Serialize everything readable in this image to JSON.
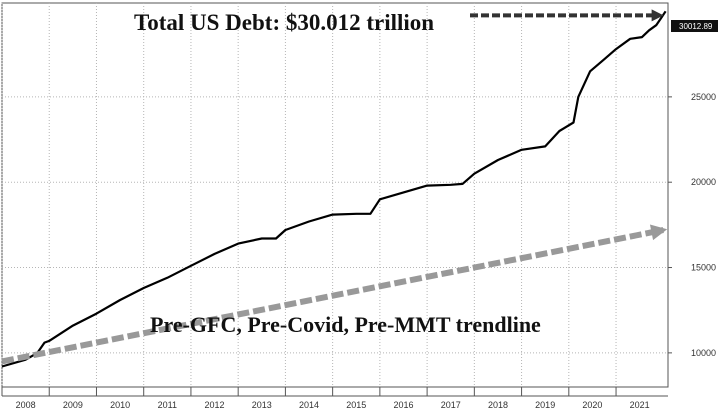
{
  "chart_data": {
    "type": "line",
    "title": "Total US Debt: $30.012 trillion",
    "trend_label": "Pre-GFC, Pre-Covid, Pre-MMT trendline",
    "last_value_label": "30012.89",
    "x_tick_labels": [
      "2008",
      "2009",
      "2010",
      "2011",
      "2012",
      "2013",
      "2014",
      "2015",
      "2016",
      "2017",
      "2018",
      "2019",
      "2020",
      "2021"
    ],
    "y_tick_labels": [
      "10000",
      "15000",
      "20000",
      "25000"
    ],
    "y_ticks": [
      10000,
      15000,
      20000,
      25000
    ],
    "xlim": [
      2008.0,
      2022.1
    ],
    "ylim": [
      8000,
      30500
    ],
    "grid": true,
    "series": [
      {
        "style": "solid",
        "color": "#000000",
        "points": [
          [
            2008.0,
            9200
          ],
          [
            2008.5,
            9600
          ],
          [
            2008.75,
            10000
          ],
          [
            2008.9,
            10600
          ],
          [
            2009.0,
            10700
          ],
          [
            2009.5,
            11600
          ],
          [
            2010.0,
            12300
          ],
          [
            2010.5,
            13100
          ],
          [
            2011.0,
            13800
          ],
          [
            2011.5,
            14400
          ],
          [
            2012.0,
            15100
          ],
          [
            2012.5,
            15800
          ],
          [
            2013.0,
            16400
          ],
          [
            2013.5,
            16700
          ],
          [
            2013.8,
            16700
          ],
          [
            2014.0,
            17200
          ],
          [
            2014.5,
            17700
          ],
          [
            2015.0,
            18100
          ],
          [
            2015.5,
            18150
          ],
          [
            2015.8,
            18150
          ],
          [
            2016.0,
            19000
          ],
          [
            2016.5,
            19400
          ],
          [
            2017.0,
            19800
          ],
          [
            2017.5,
            19850
          ],
          [
            2017.75,
            19900
          ],
          [
            2018.0,
            20500
          ],
          [
            2018.5,
            21300
          ],
          [
            2019.0,
            21900
          ],
          [
            2019.5,
            22100
          ],
          [
            2019.8,
            23000
          ],
          [
            2020.1,
            23500
          ],
          [
            2020.2,
            25000
          ],
          [
            2020.45,
            26500
          ],
          [
            2020.75,
            27200
          ],
          [
            2021.0,
            27800
          ],
          [
            2021.3,
            28400
          ],
          [
            2021.55,
            28500
          ],
          [
            2021.7,
            28900
          ],
          [
            2021.85,
            29200
          ],
          [
            2021.95,
            29600
          ],
          [
            2022.05,
            30012
          ]
        ]
      },
      {
        "style": "dashed",
        "color": "#999999",
        "points": [
          [
            2008.0,
            9500
          ],
          [
            2022.0,
            17200
          ]
        ]
      }
    ]
  }
}
